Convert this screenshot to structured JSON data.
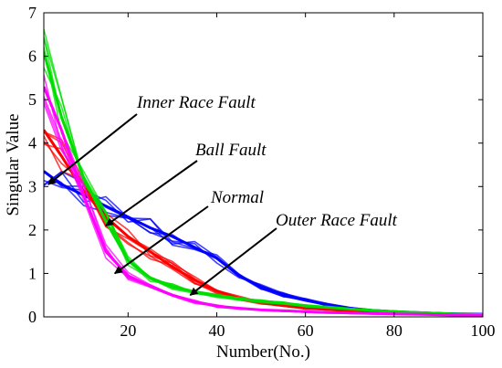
{
  "chart_data": {
    "type": "line",
    "xlabel": "Number(No.)",
    "ylabel": "Singular Value",
    "xlim": [
      1,
      100
    ],
    "ylim": [
      0,
      7
    ],
    "x_ticks": [
      20,
      40,
      60,
      80,
      100
    ],
    "y_ticks": [
      0,
      1,
      2,
      3,
      4,
      5,
      6,
      7
    ],
    "grid": false,
    "legend": "none",
    "series": [
      {
        "name": "Inner Race Fault",
        "color": "#0000ff",
        "x": [
          1,
          5,
          10,
          15,
          20,
          25,
          30,
          35,
          40,
          45,
          50,
          55,
          60,
          65,
          70,
          75,
          80,
          85,
          90,
          95,
          100
        ],
        "y": [
          3.35,
          3.05,
          2.8,
          2.55,
          2.3,
          2.05,
          1.85,
          1.6,
          1.35,
          0.95,
          0.7,
          0.5,
          0.38,
          0.28,
          0.2,
          0.15,
          0.12,
          0.1,
          0.08,
          0.07,
          0.06
        ]
      },
      {
        "name": "Ball Fault",
        "color": "#ff0000",
        "x": [
          1,
          5,
          10,
          15,
          20,
          25,
          30,
          35,
          40,
          45,
          50,
          55,
          60,
          65,
          70,
          75,
          80,
          85,
          90,
          95,
          100
        ],
        "y": [
          4.3,
          3.7,
          2.9,
          2.3,
          1.85,
          1.5,
          1.15,
          0.85,
          0.6,
          0.43,
          0.33,
          0.26,
          0.2,
          0.17,
          0.14,
          0.12,
          0.1,
          0.08,
          0.07,
          0.06,
          0.05
        ]
      },
      {
        "name": "Normal",
        "color": "#00dd00",
        "x": [
          1,
          5,
          10,
          15,
          20,
          25,
          30,
          35,
          40,
          45,
          50,
          55,
          60,
          65,
          70,
          75,
          80,
          85,
          90,
          95,
          100
        ],
        "y": [
          6.1,
          4.6,
          3.2,
          2.2,
          1.3,
          0.9,
          0.7,
          0.58,
          0.5,
          0.42,
          0.36,
          0.31,
          0.26,
          0.22,
          0.18,
          0.15,
          0.12,
          0.1,
          0.08,
          0.06,
          0.05
        ]
      },
      {
        "name": "Outer Race Fault",
        "color": "#ff00ff",
        "x": [
          1,
          5,
          10,
          15,
          20,
          25,
          30,
          35,
          40,
          45,
          50,
          55,
          60,
          65,
          70,
          75,
          80,
          85,
          90,
          95,
          100
        ],
        "y": [
          5.3,
          4.3,
          2.8,
          1.5,
          0.95,
          0.7,
          0.5,
          0.35,
          0.25,
          0.2,
          0.16,
          0.14,
          0.12,
          0.1,
          0.09,
          0.08,
          0.07,
          0.06,
          0.05,
          0.04,
          0.03
        ]
      }
    ],
    "annotations": [
      {
        "text": "Inner Race Fault",
        "target": {
          "x": 2,
          "y": 3.05
        }
      },
      {
        "text": "Ball Fault",
        "target": {
          "x": 15,
          "y": 2.1
        }
      },
      {
        "text": "Normal",
        "target": {
          "x": 17,
          "y": 1.0
        }
      },
      {
        "text": "Outer Race Fault",
        "target": {
          "x": 34,
          "y": 0.5
        }
      }
    ]
  }
}
